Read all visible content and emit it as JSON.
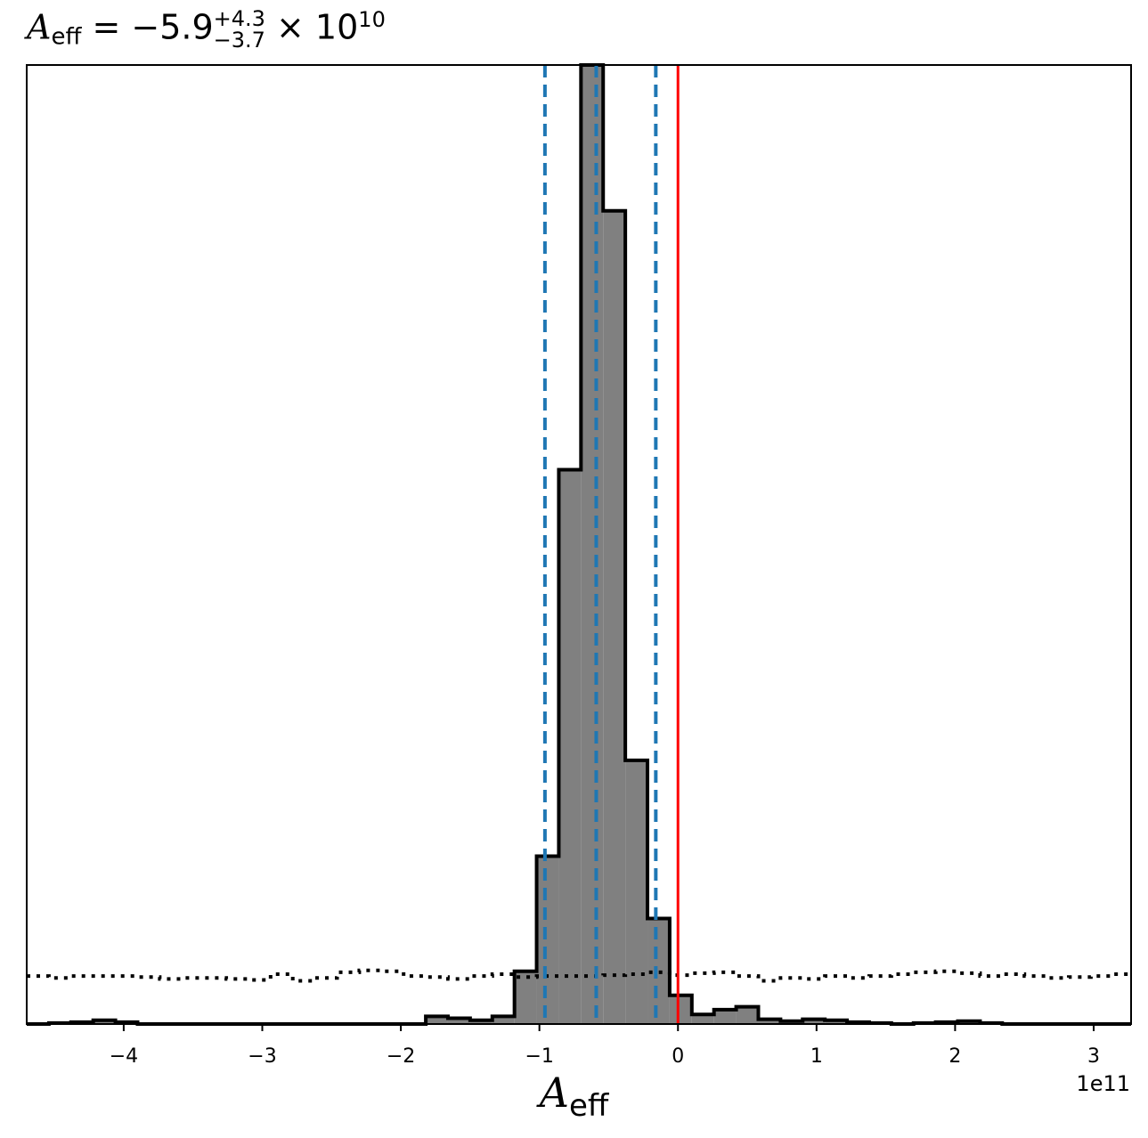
{
  "chart_data": {
    "type": "histogram",
    "title": {
      "symbol": "A",
      "subscript": "eff",
      "middle": " = −5.9",
      "sup": "+4.3",
      "sub": "−3.7",
      "suffix": " × 10",
      "exponent": "10"
    },
    "xlabel": {
      "symbol": "A",
      "subscript": "eff"
    },
    "x_offset_label": "1e11",
    "xlim": [
      -4.7,
      3.27
    ],
    "ylim": [
      0,
      1.0
    ],
    "xticks": [
      -4,
      -3,
      -2,
      -1,
      0,
      1,
      2,
      3
    ],
    "xtick_labels": [
      "−4",
      "−3",
      "−2",
      "−1",
      "0",
      "1",
      "2",
      "3"
    ],
    "bin_edges": [
      -4.7,
      -4.54,
      -4.38,
      -4.22,
      -4.06,
      -3.9,
      -3.74,
      -3.58,
      -3.42,
      -3.26,
      -3.1,
      -2.94,
      -2.78,
      -2.62,
      -2.46,
      -2.3,
      -2.14,
      -1.98,
      -1.82,
      -1.66,
      -1.5,
      -1.34,
      -1.18,
      -1.02,
      -0.86,
      -0.7,
      -0.54,
      -0.38,
      -0.22,
      -0.06,
      0.1,
      0.26,
      0.42,
      0.58,
      0.74,
      0.9,
      1.06,
      1.22,
      1.38,
      1.54,
      1.7,
      1.86,
      2.02,
      2.18,
      2.34,
      2.5,
      2.66,
      2.82,
      2.98,
      3.14,
      3.27
    ],
    "posterior_counts": [
      0,
      0.001,
      0.002,
      0.004,
      0.002,
      0,
      0,
      0,
      0,
      0,
      0,
      0,
      0,
      0,
      0,
      0,
      0,
      0,
      0.008,
      0.006,
      0.004,
      0.008,
      0.055,
      0.175,
      0.578,
      1.0,
      0.848,
      0.275,
      0.11,
      0.03,
      0.01,
      0.015,
      0.018,
      0.005,
      0.003,
      0.005,
      0.004,
      0.002,
      0.001,
      0.0,
      0.001,
      0.002,
      0.003,
      0.001,
      0,
      0,
      0,
      0,
      0,
      0
    ],
    "prior_counts": [
      0.05,
      0.048,
      0.05,
      0.05,
      0.05,
      0.049,
      0.047,
      0.048,
      0.048,
      0.047,
      0.046,
      0.052,
      0.045,
      0.048,
      0.054,
      0.056,
      0.055,
      0.05,
      0.049,
      0.047,
      0.05,
      0.052,
      0.049,
      0.05,
      0.05,
      0.05,
      0.051,
      0.052,
      0.054,
      0.051,
      0.053,
      0.054,
      0.05,
      0.045,
      0.048,
      0.047,
      0.05,
      0.048,
      0.05,
      0.052,
      0.054,
      0.055,
      0.053,
      0.05,
      0.052,
      0.05,
      0.048,
      0.049,
      0.05,
      0.052
    ],
    "quantile_lines": [
      -0.96,
      -0.59,
      -0.16
    ],
    "truth_line": 0,
    "colors": {
      "posterior_fill": "#808080",
      "posterior_edge": "#000000",
      "quantile": "#1f77b4",
      "truth": "#ff0000",
      "prior": "#000000"
    }
  }
}
